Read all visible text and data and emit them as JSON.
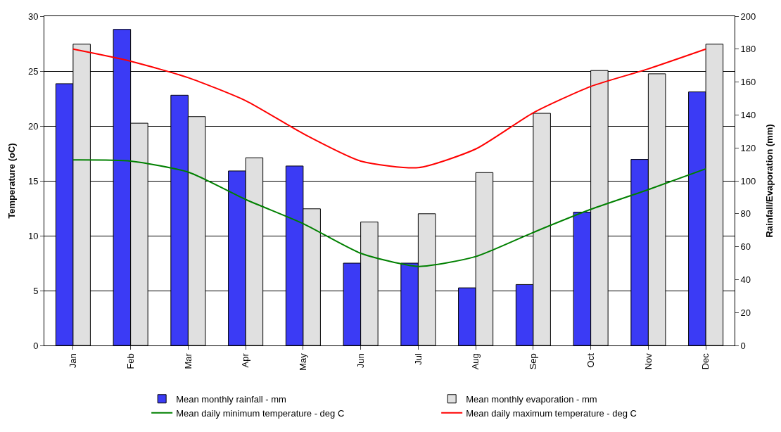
{
  "chart_data": {
    "type": "bar",
    "ylabel": "Temperature (oC)",
    "y2label": "Rainfall/Evaporation (mm)",
    "categories": [
      "Jan",
      "Feb",
      "Mar",
      "Apr",
      "May",
      "Jun",
      "Jul",
      "Aug",
      "Sep",
      "Oct",
      "Nov",
      "Dec"
    ],
    "series": [
      {
        "name": "Mean monthly rainfall - mm",
        "color": "#3b3bf5",
        "axis": "y2",
        "values": [
          159,
          192,
          152,
          106,
          109,
          50,
          50,
          35,
          37,
          81,
          113,
          154
        ]
      },
      {
        "name": "Mean monthly evaporation - mm",
        "color": "#e0e0e0",
        "axis": "y2",
        "values": [
          183,
          135,
          139,
          114,
          83,
          75,
          80,
          105,
          141,
          167,
          165,
          183
        ]
      },
      {
        "name": "Mean daily minimum temperature - deg C",
        "color": "#008000",
        "type": "line",
        "values": [
          16.9,
          16.8,
          15.8,
          13.3,
          11.1,
          8.4,
          7.2,
          8.1,
          10.3,
          12.4,
          14.2,
          16.1
        ]
      },
      {
        "name": "Mean daily maximum temperature - deg C",
        "color": "#ff0000",
        "type": "line",
        "values": [
          27.0,
          25.9,
          24.4,
          22.3,
          19.3,
          16.8,
          16.2,
          17.9,
          21.2,
          23.6,
          25.2,
          27.0
        ]
      }
    ],
    "ylim": [
      0,
      30
    ],
    "yticks": [
      0,
      5,
      10,
      15,
      20,
      25,
      30
    ],
    "y2lim": [
      0,
      200
    ],
    "y2ticks": [
      0,
      20,
      40,
      60,
      80,
      100,
      120,
      140,
      160,
      180,
      200
    ],
    "grid": "y",
    "legend": "bottom",
    "marker": "none",
    "line_style": "solid"
  }
}
